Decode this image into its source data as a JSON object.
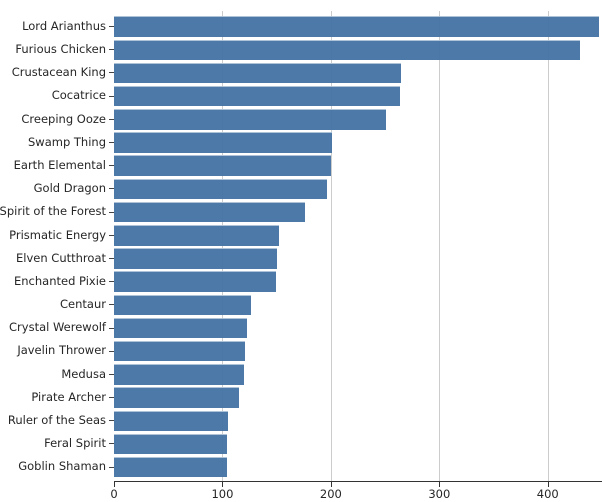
{
  "chart_data": {
    "type": "bar",
    "orientation": "horizontal",
    "title": "",
    "xlabel": "",
    "ylabel": "",
    "xlim": [
      0,
      450
    ],
    "x_ticks": [
      0,
      100,
      200,
      300,
      400
    ],
    "x_tick_labels": [
      "0",
      "100",
      "200",
      "300",
      "400"
    ],
    "grid": true,
    "legend": false,
    "categories": [
      "Lord Arianthus",
      "Furious Chicken",
      "Crustacean King",
      "Cocatrice",
      "Creeping Ooze",
      "Swamp Thing",
      "Earth Elemental",
      "Gold Dragon",
      "Spirit of the Forest",
      "Prismatic Energy",
      "Elven Cutthroat",
      "Enchanted Pixie",
      "Centaur",
      "Crystal Werewolf",
      "Javelin Thrower",
      "Medusa",
      "Pirate Archer",
      "Ruler of the Seas",
      "Feral Spirit",
      "Goblin Shaman"
    ],
    "values": [
      447,
      430,
      265,
      264,
      251,
      201,
      200,
      196,
      176,
      152,
      150,
      149,
      126,
      123,
      121,
      120,
      115,
      105,
      104,
      104
    ]
  },
  "colors": {
    "bar": "#4c78a8",
    "bar_rgba": "rgba(70,116,166,0.96)",
    "gridline": "#cccccc",
    "axis_line": "#333333",
    "tick": "#444444",
    "text": "#262626"
  }
}
